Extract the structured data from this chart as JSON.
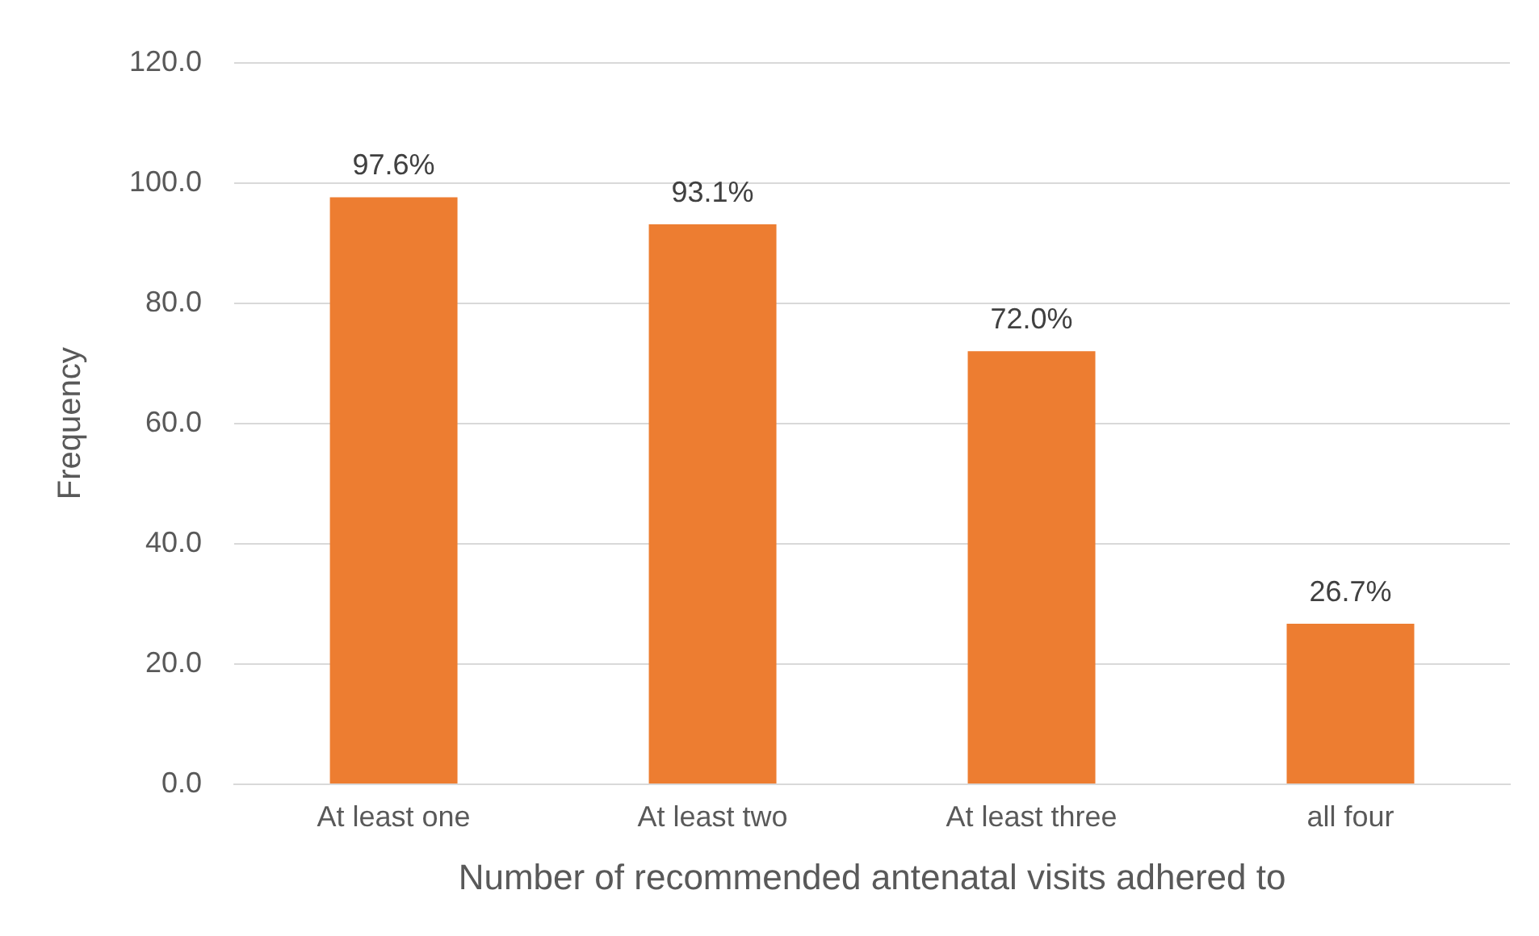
{
  "chart_data": {
    "type": "bar",
    "xlabel": "Number of recommended antenatal visits adhered to",
    "ylabel": "Frequency",
    "categories": [
      "At least one",
      "At least two",
      "At least three",
      "all four"
    ],
    "values": [
      97.6,
      93.1,
      72.0,
      26.7
    ],
    "value_labels": [
      "97.6%",
      "93.1%",
      "72.0%",
      "26.7%"
    ],
    "color": "#ed7d31",
    "ylim": [
      0,
      120
    ],
    "yticks": [
      {
        "value": 0,
        "label": "0.0"
      },
      {
        "value": 20,
        "label": "20.0"
      },
      {
        "value": 40,
        "label": "40.0"
      },
      {
        "value": 60,
        "label": "60.0"
      },
      {
        "value": 80,
        "label": "80.0"
      },
      {
        "value": 100,
        "label": "100.0"
      },
      {
        "value": 120,
        "label": "120.0"
      }
    ],
    "grid": "y",
    "legend": false
  }
}
